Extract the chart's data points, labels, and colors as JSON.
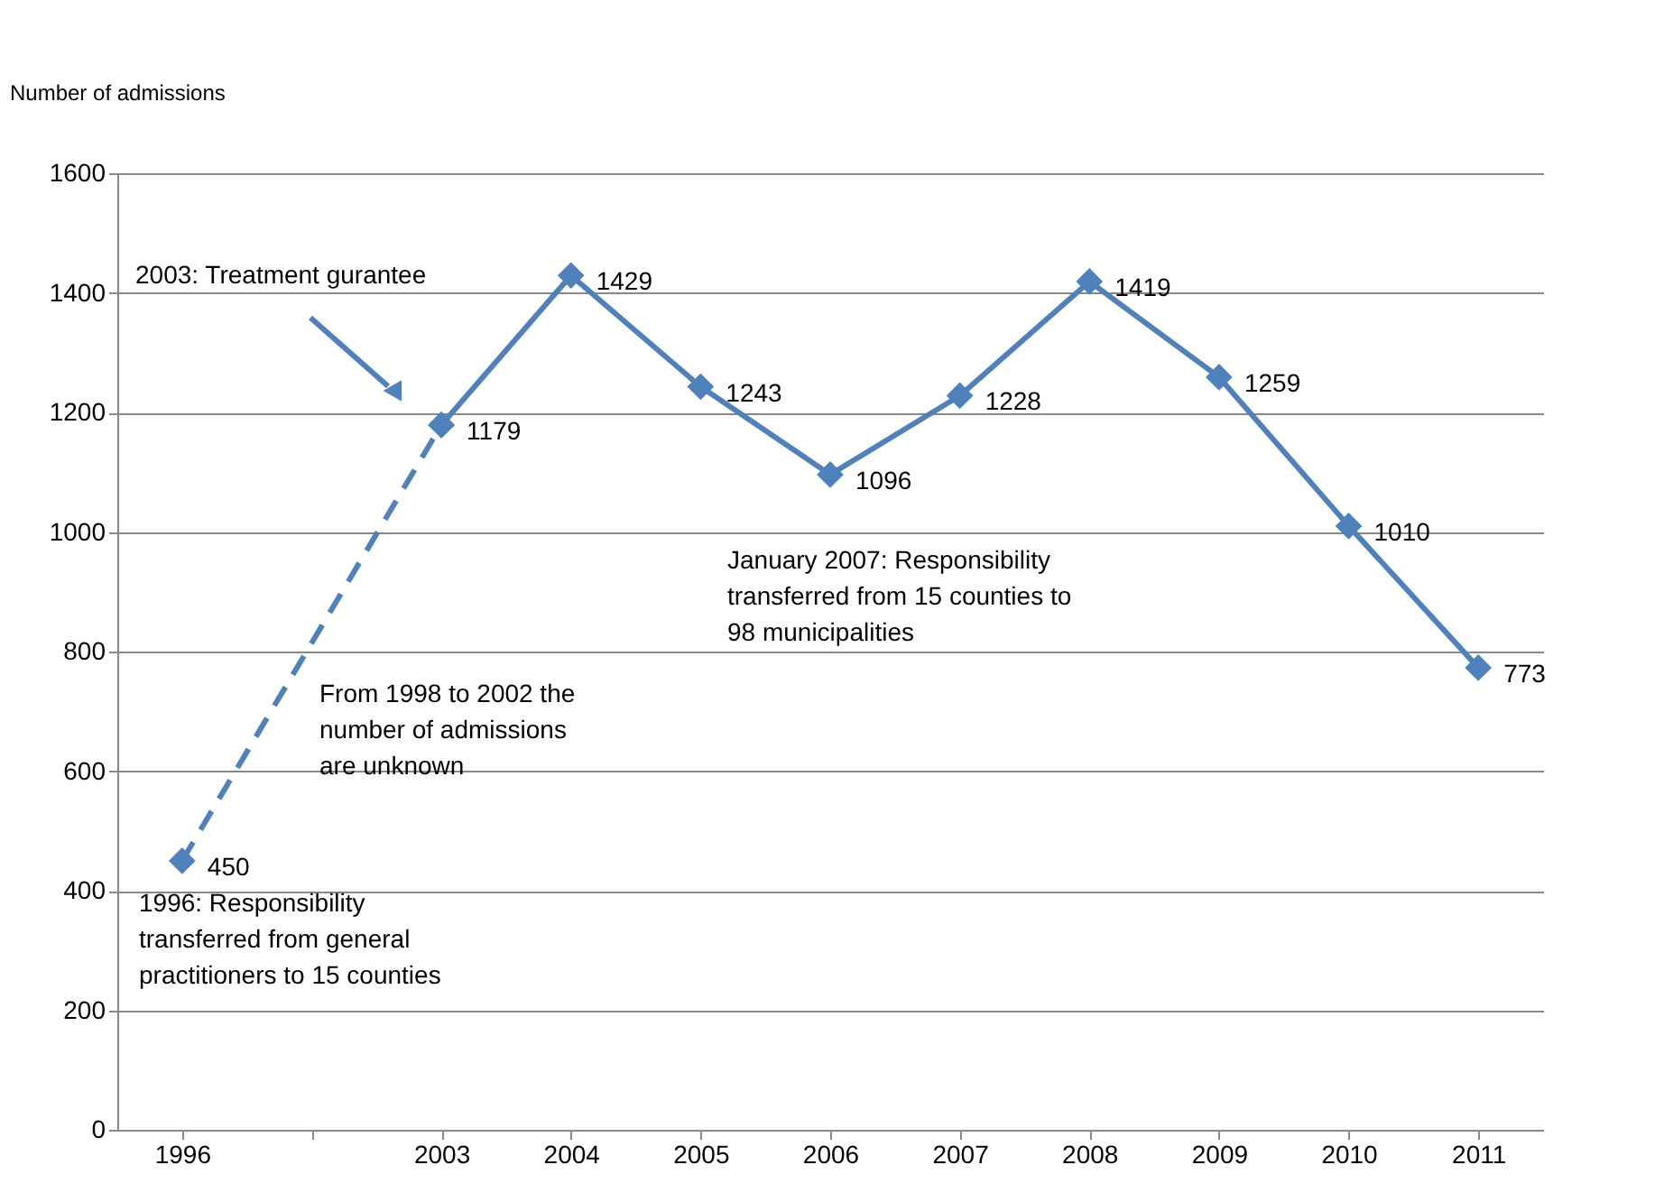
{
  "chart_data": {
    "type": "line",
    "ylabel": "Number of admissions",
    "categories": [
      "1996",
      null,
      "2003",
      "2004",
      "2005",
      "2006",
      "2007",
      "2008",
      "2009",
      "2010",
      "2011"
    ],
    "series": [
      {
        "color": "#4f81bd",
        "values": [
          450,
          null,
          1179,
          null,
          null,
          null,
          null,
          null,
          null,
          null,
          null
        ],
        "value_labels": [
          "450",
          null,
          null,
          null,
          null,
          null,
          null,
          null,
          null,
          null,
          null
        ],
        "line_style": "dashed"
      },
      {
        "color": "#4f81bd",
        "values": [
          null,
          null,
          1179,
          1429,
          1243,
          1096,
          1228,
          1419,
          1259,
          1010,
          773
        ],
        "value_labels": [
          null,
          null,
          "1179",
          "1429",
          "1243",
          "1096",
          "1228",
          "1419",
          "1259",
          "1010",
          "773"
        ],
        "line_style": "solid"
      }
    ],
    "ylim": [
      0,
      1600
    ],
    "yticks": [
      0,
      200,
      400,
      600,
      800,
      1000,
      1200,
      1400,
      1600
    ],
    "grid": "y",
    "marker": "diamond",
    "annotations": [
      "2003: Treatment gurantee",
      "January 2007: Responsibility\ntransferred from 15 counties to\n98 municipalities",
      "From 1998 to 2002 the\nnumber of admissions\nare unknown",
      "1996: Responsibility\ntransferred from general\npractitioners to 15 counties"
    ]
  }
}
